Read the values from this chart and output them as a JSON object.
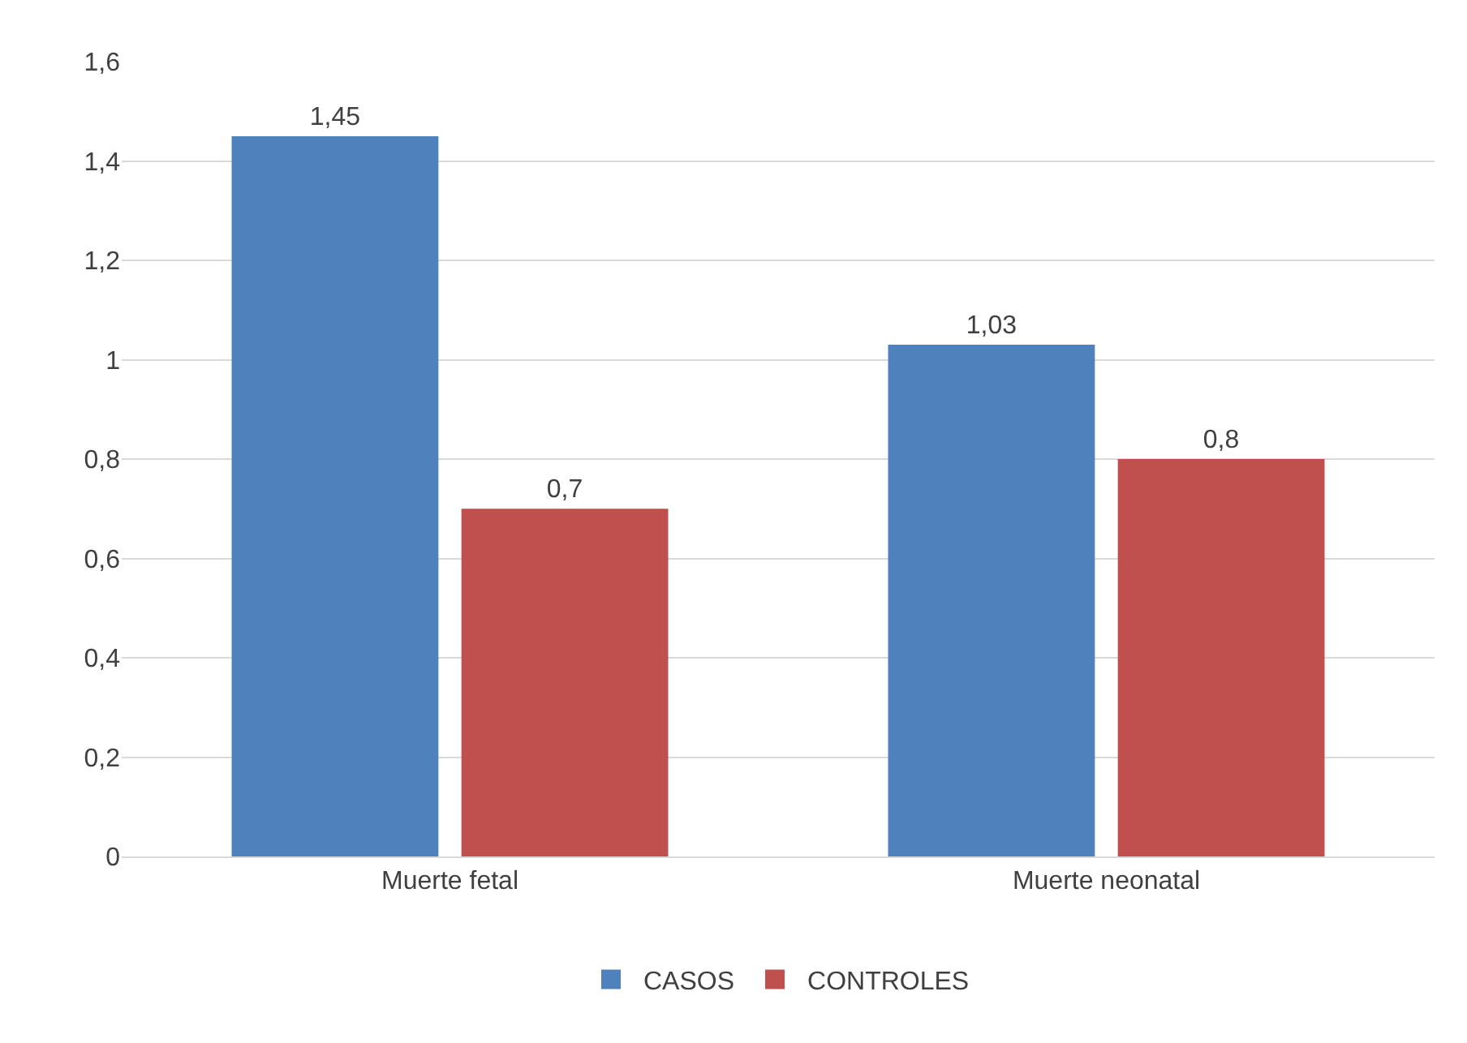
{
  "chart_data": {
    "type": "bar",
    "categories": [
      "Muerte fetal",
      "Muerte neonatal"
    ],
    "series": [
      {
        "name": "CASOS",
        "color": "#4f81bd",
        "values": [
          1.45,
          1.03
        ],
        "value_labels": [
          "1,45",
          "1,03"
        ]
      },
      {
        "name": "CONTROLES",
        "color": "#c0504d",
        "values": [
          0.7,
          0.8
        ],
        "value_labels": [
          "0,7",
          "0,8"
        ]
      }
    ],
    "ylim": [
      0,
      1.6
    ],
    "yticks": [
      0,
      {
        "value": 0.2,
        "label": "0,2"
      },
      {
        "value": 0.4,
        "label": "0,4"
      },
      {
        "value": 0.6,
        "label": "0,6"
      },
      {
        "value": 0.8,
        "label": "0,8"
      },
      1,
      {
        "value": 1.2,
        "label": "1,2"
      },
      {
        "value": 1.4,
        "label": "1,4"
      },
      {
        "value": 1.6,
        "label": "1,6"
      }
    ],
    "grid": "y",
    "legend": "bottom"
  }
}
